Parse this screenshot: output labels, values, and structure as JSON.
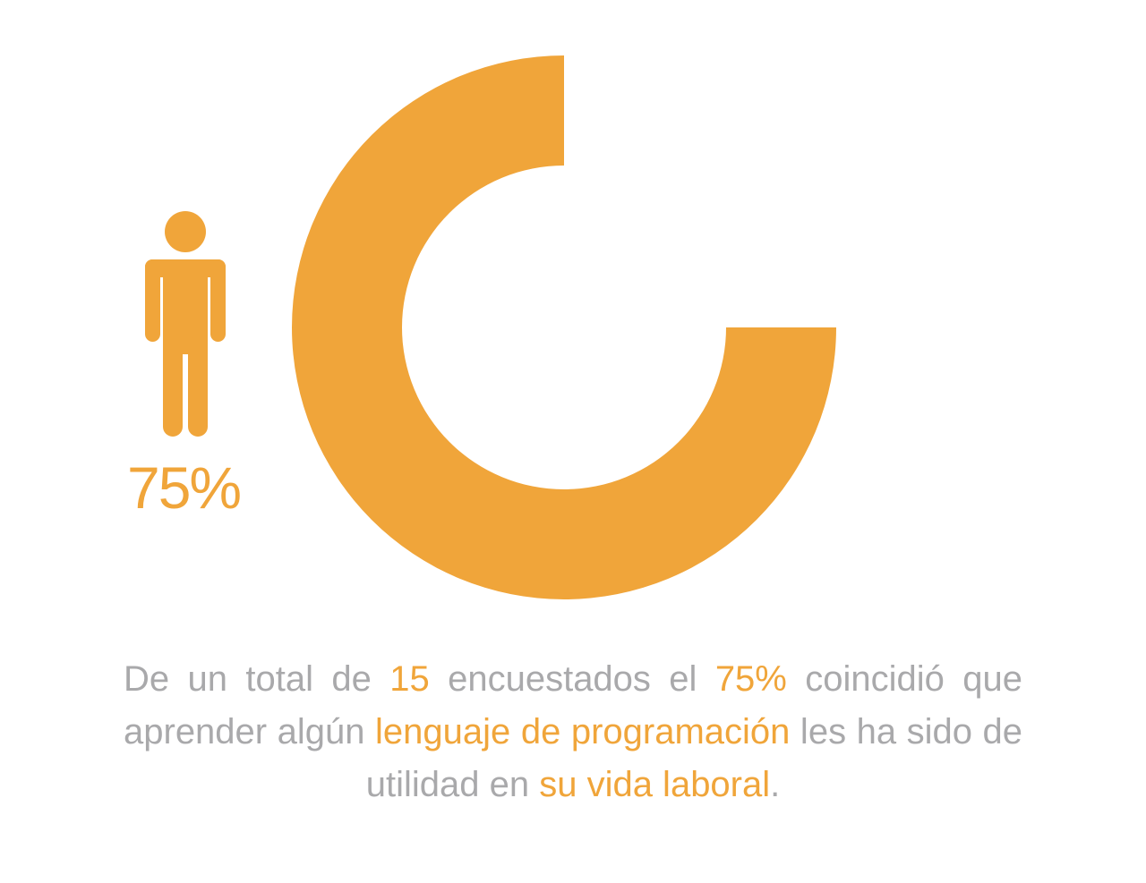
{
  "colors": {
    "accent": "#F0A53A",
    "text": "#A9A9AB",
    "background": "#FFFFFF"
  },
  "icons": {
    "person": "person-icon"
  },
  "chart_data": {
    "type": "pie",
    "variant": "donut",
    "values": [
      75,
      25
    ],
    "colors": [
      "#F0A53A",
      "#FFFFFF"
    ],
    "data_label": "75%"
  },
  "caption": {
    "p1": "De un total de ",
    "h1": "15",
    "p2": " encuestados el ",
    "h2": "75%",
    "p3": " coincidió que aprender algún ",
    "h3": "lenguaje de programación",
    "p4": " les ha sido de utilidad en ",
    "h4": "su vida laboral",
    "p5": "."
  }
}
